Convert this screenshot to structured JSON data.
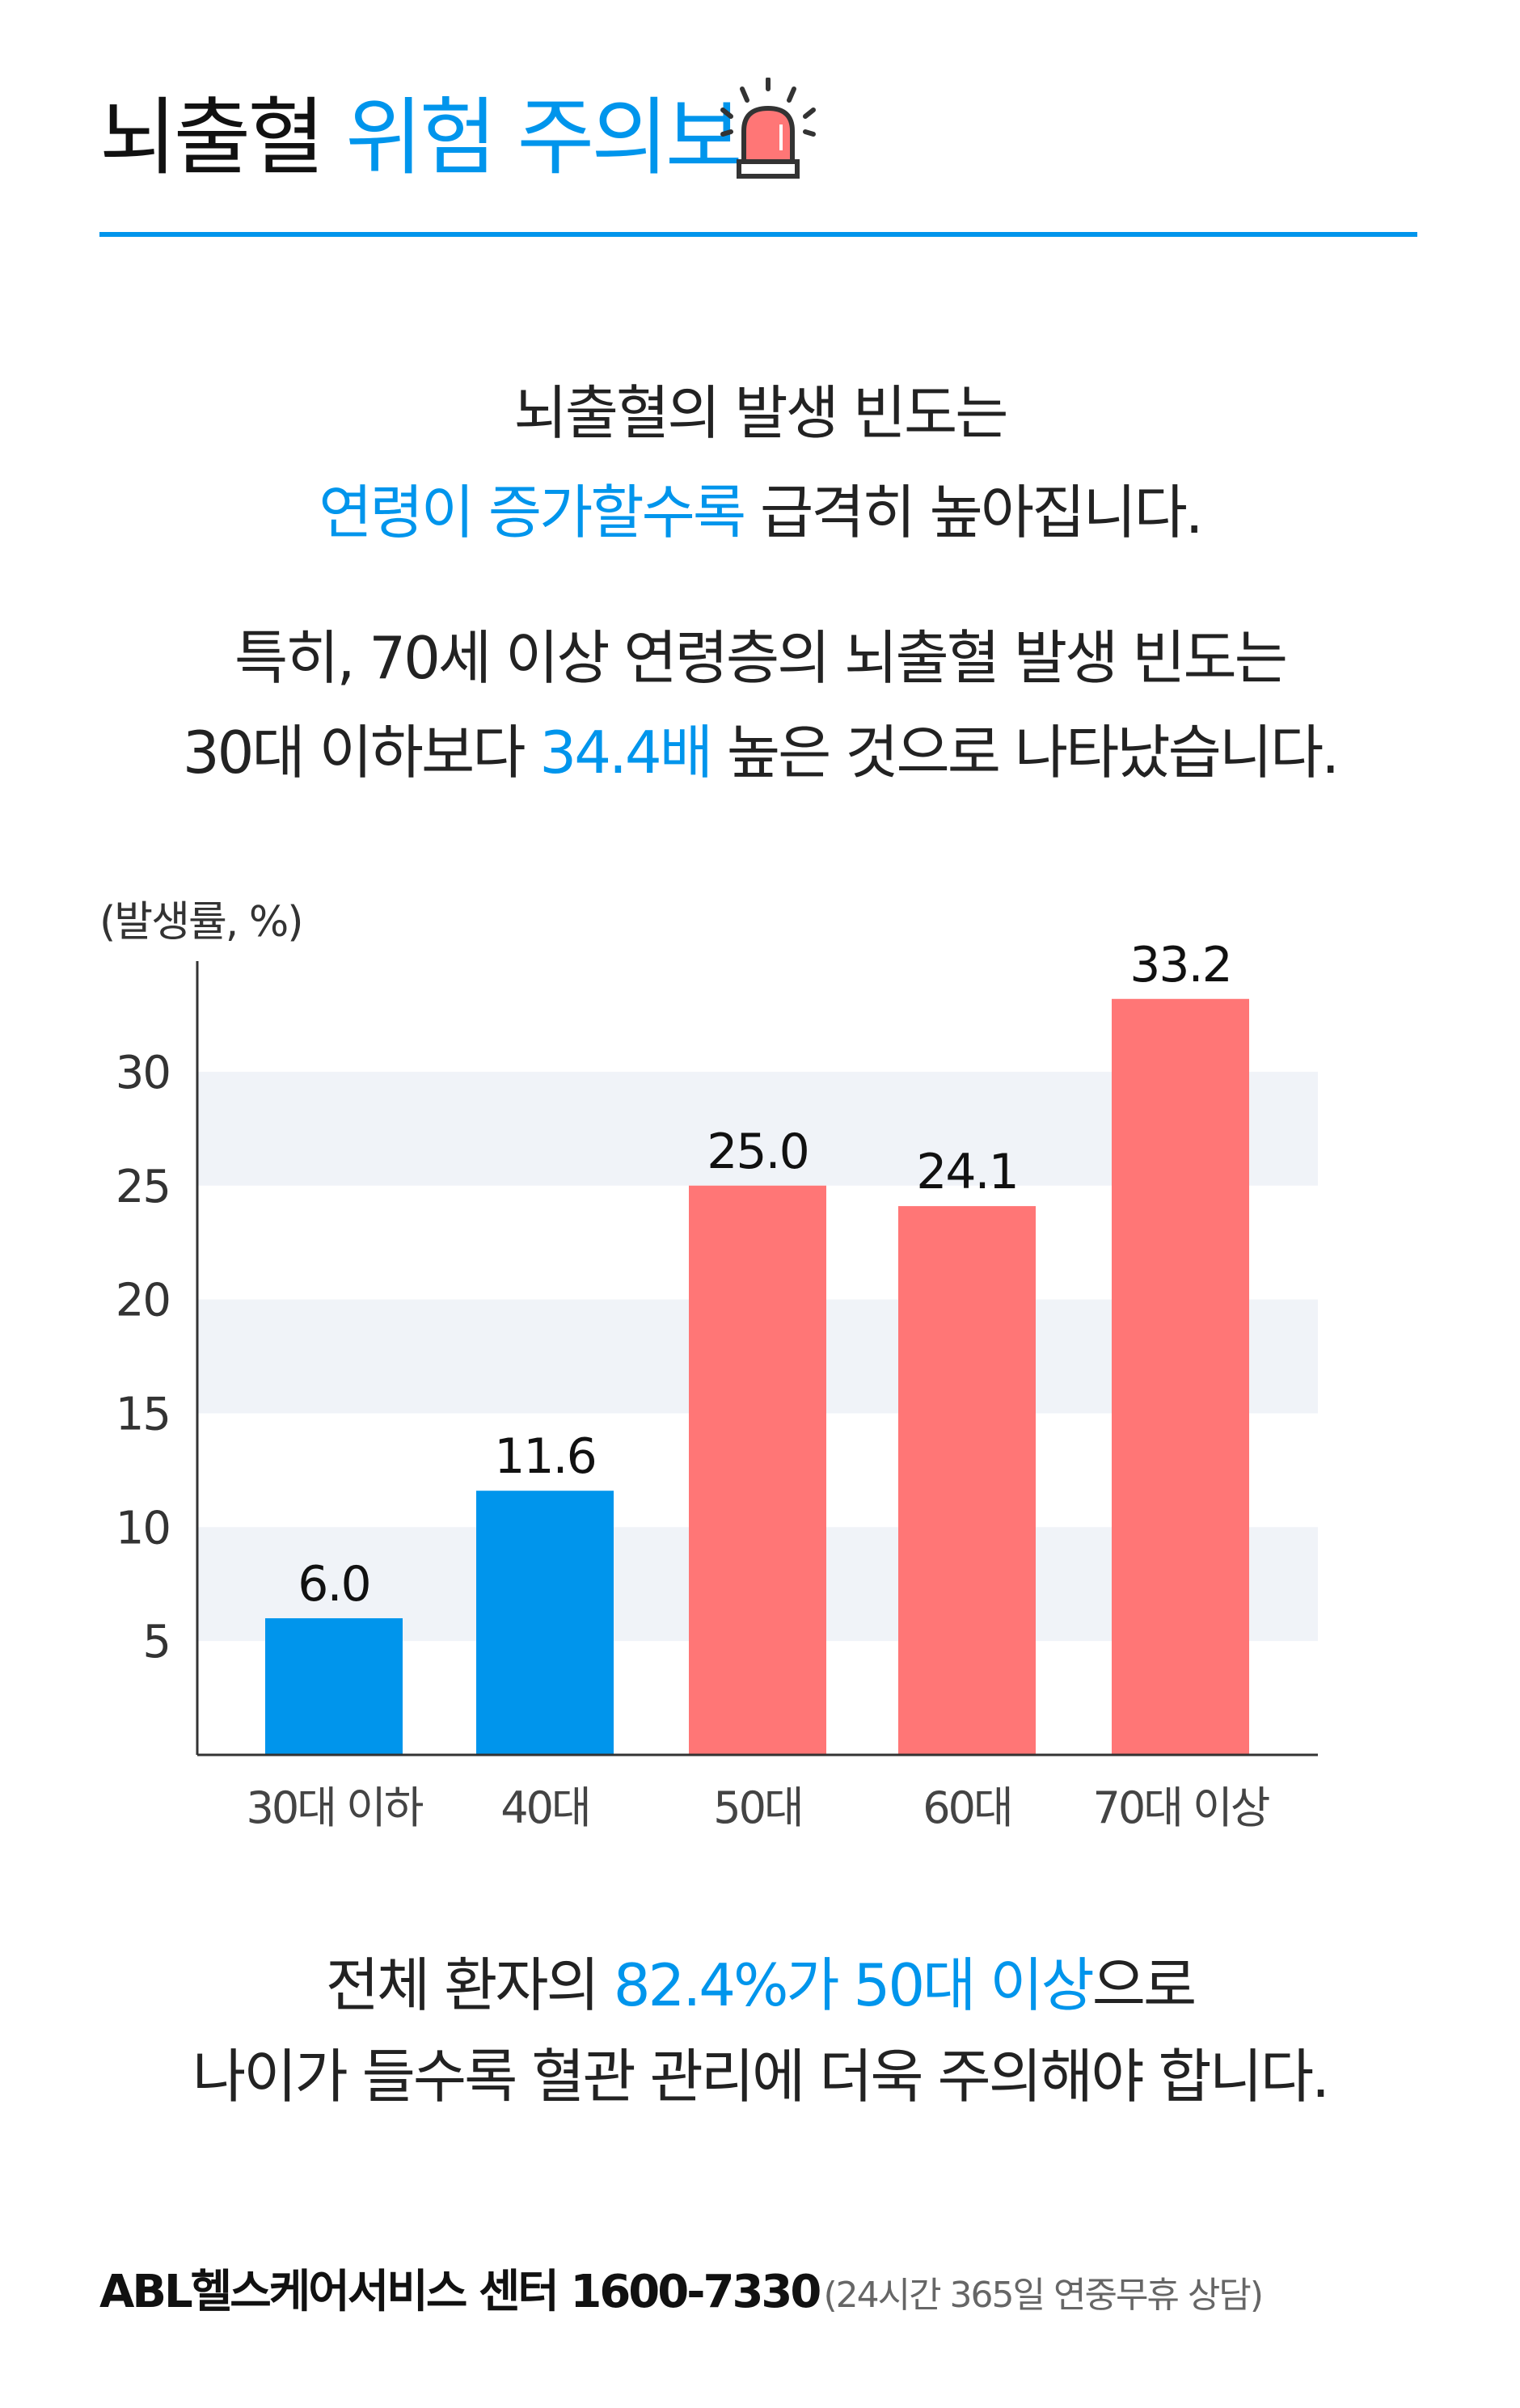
{
  "header": {
    "title_part1": "뇌출혈",
    "title_part2": "위험 주의보",
    "icon": "siren-icon"
  },
  "intro": {
    "line1": "뇌출혈의 발생 빈도는",
    "line2_highlight": "연령이 증가할수록",
    "line2_rest": " 급격히 높아집니다.",
    "line3": "특히, 70세 이상 연령층의 뇌출혈 발생 빈도는",
    "line4_pre": "30대 이하보다 ",
    "line4_highlight": "34.4배",
    "line4_post": " 높은 것으로 나타났습니다."
  },
  "chart_data": {
    "type": "bar",
    "ylabel": "(발생률, %)",
    "categories": [
      "30대 이하",
      "40대",
      "50대",
      "60대",
      "70대 이상"
    ],
    "values": [
      6.0,
      11.6,
      25.0,
      24.1,
      33.2
    ],
    "value_labels": [
      "6.0",
      "11.6",
      "25.0",
      "24.1",
      "33.2"
    ],
    "yticks": [
      5,
      10,
      15,
      20,
      25,
      30
    ],
    "ylim": [
      0,
      35
    ],
    "bar_colors": [
      "#0095ec",
      "#0095ec",
      "#ff7676",
      "#ff7676",
      "#ff7676"
    ],
    "band_color": "#f0f3f8"
  },
  "conclusion": {
    "line1_pre": "전체 환자의 ",
    "line1_highlight": "82.4%가 50대 이상",
    "line1_post": "으로",
    "line2": "나이가 들수록 혈관 관리에 더욱 주의해야 합니다."
  },
  "footer": {
    "main": "ABL헬스케어서비스 센터 1600-7330",
    "sub": "(24시간 365일 연중무휴 상담)"
  },
  "colors": {
    "accent": "#0095ec",
    "red": "#ff7676"
  }
}
